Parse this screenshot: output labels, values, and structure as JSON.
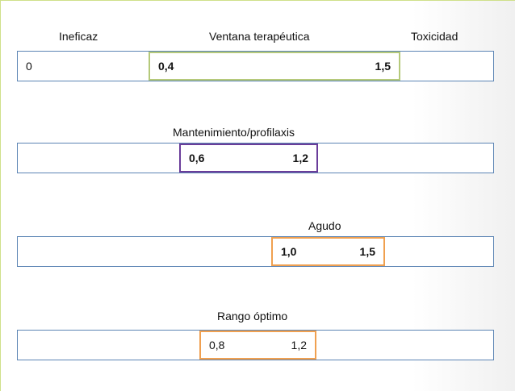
{
  "row1": {
    "label_left": "Ineficaz",
    "label_center": "Ventana terapéutica",
    "label_right": "Toxicidad",
    "bar_start": "0",
    "range_low": "0,4",
    "range_high": "1,5",
    "range_color": "#b5c97a"
  },
  "row2": {
    "label": "Mantenimiento/profilaxis",
    "range_low": "0,6",
    "range_high": "1,2",
    "range_color": "#6a3d9a"
  },
  "row3": {
    "label": "Agudo",
    "range_low": "1,0",
    "range_high": "1,5",
    "range_color": "#f0a050"
  },
  "row4": {
    "label": "Rango óptimo",
    "range_low": "0,8",
    "range_high": "1,2",
    "range_color": "#f0a050"
  },
  "bar_color": "#5b84b4"
}
